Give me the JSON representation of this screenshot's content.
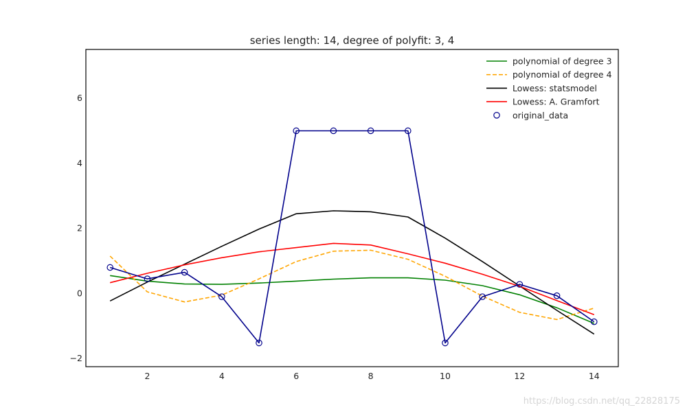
{
  "chart_data": {
    "type": "line",
    "title": "series length: 14, degree of polyfit: 3, 4",
    "xlabel": "",
    "ylabel": "",
    "xlim": [
      0.35,
      14.65
    ],
    "ylim": [
      -2.25,
      7.5
    ],
    "xticks": [
      2,
      4,
      6,
      8,
      10,
      12,
      14
    ],
    "yticks": [
      -2,
      0,
      2,
      4,
      6
    ],
    "grid": false,
    "legend": "top-right",
    "series": [
      {
        "name": "polynomial of degree 3",
        "style": "solid",
        "color": "#008000",
        "x": [
          1,
          2,
          3,
          4,
          5,
          6,
          7,
          8,
          9,
          10,
          11,
          12,
          13,
          14
        ],
        "y": [
          0.55,
          0.38,
          0.29,
          0.28,
          0.32,
          0.38,
          0.44,
          0.48,
          0.48,
          0.41,
          0.24,
          -0.04,
          -0.44,
          -0.92
        ]
      },
      {
        "name": "polynomial of degree 4",
        "style": "dashed",
        "color": "#ffa500",
        "x": [
          1,
          2,
          3,
          4,
          5,
          6,
          7,
          8,
          9,
          10,
          11,
          12,
          13,
          14
        ],
        "y": [
          1.15,
          0.05,
          -0.26,
          -0.05,
          0.45,
          0.98,
          1.3,
          1.33,
          1.05,
          0.53,
          -0.08,
          -0.58,
          -0.8,
          -0.45
        ]
      },
      {
        "name": "Lowess: statsmodel",
        "style": "solid",
        "color": "#000000",
        "x": [
          1,
          2,
          3,
          4,
          5,
          6,
          7,
          8,
          9,
          10,
          11,
          12,
          13,
          14
        ],
        "y": [
          -0.23,
          0.35,
          0.9,
          1.45,
          1.98,
          2.45,
          2.54,
          2.51,
          2.35,
          1.7,
          0.98,
          0.23,
          -0.52,
          -1.25
        ]
      },
      {
        "name": "Lowess: A. Gramfort",
        "style": "solid",
        "color": "#ff0000",
        "x": [
          1,
          2,
          3,
          4,
          5,
          6,
          7,
          8,
          9,
          10,
          11,
          12,
          13,
          14
        ],
        "y": [
          0.33,
          0.62,
          0.88,
          1.1,
          1.28,
          1.41,
          1.54,
          1.49,
          1.22,
          0.93,
          0.59,
          0.22,
          -0.22,
          -0.65
        ]
      },
      {
        "name": "original_data",
        "style": "markers+line",
        "color": "#00008b",
        "x": [
          1,
          2,
          3,
          4,
          5,
          6,
          7,
          8,
          9,
          10,
          11,
          12,
          13,
          14
        ],
        "y": [
          0.8,
          0.45,
          0.65,
          -0.1,
          -1.52,
          5.0,
          5.0,
          5.0,
          5.0,
          -1.52,
          -0.1,
          0.28,
          -0.07,
          -0.87
        ]
      }
    ]
  },
  "watermark": "https://blog.csdn.net/qq_22828175"
}
